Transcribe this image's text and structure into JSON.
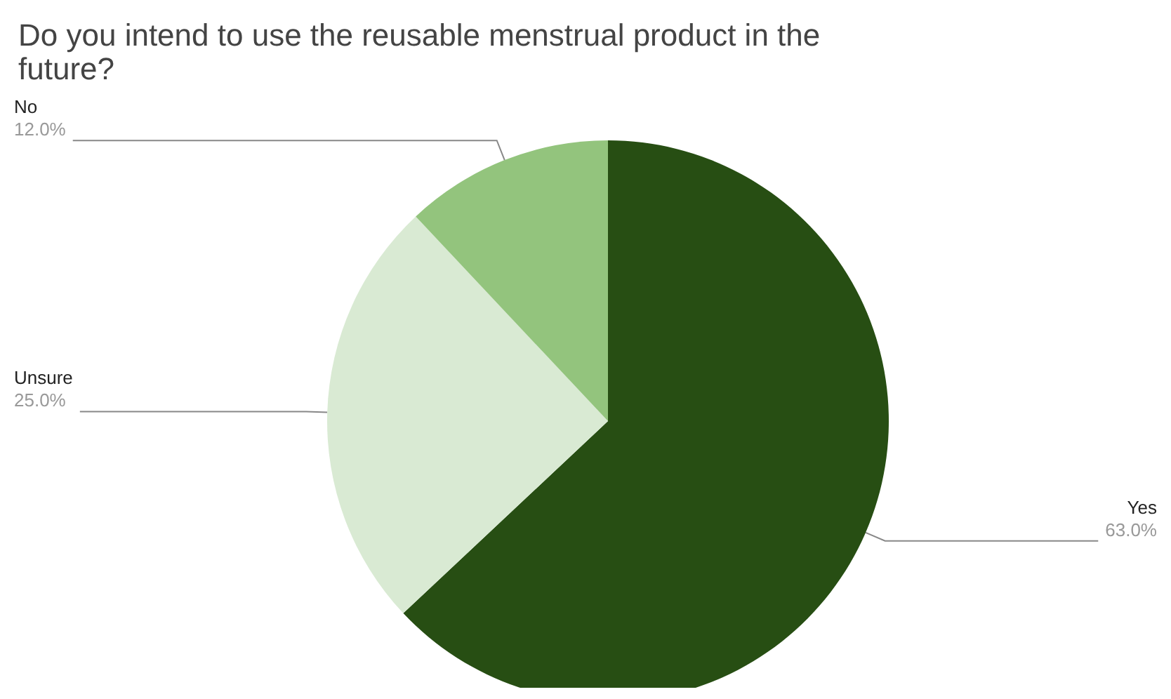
{
  "chart_data": {
    "type": "pie",
    "title": "Do you intend to use the reusable menstrual product in the future?",
    "categories": [
      "Yes",
      "Unsure",
      "No"
    ],
    "values": [
      63,
      25,
      12
    ],
    "colors": [
      "#274e13",
      "#d9ead3",
      "#93c47d"
    ],
    "value_labels": [
      "63.0%",
      "25.0%",
      "12.0%"
    ],
    "legend": false
  }
}
